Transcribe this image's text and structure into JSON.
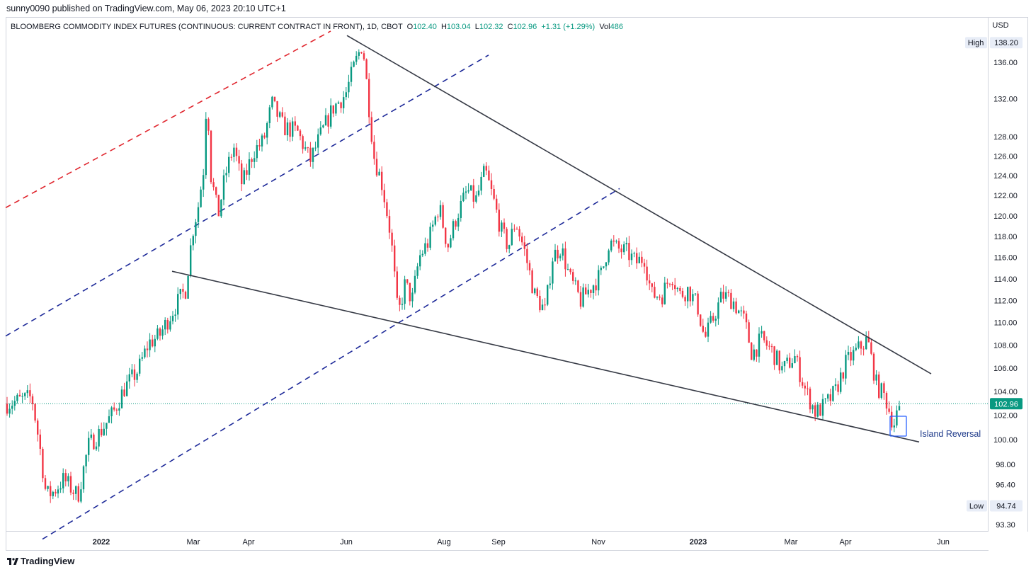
{
  "header": {
    "published": "sunny0090 published on TradingView.com, May 06, 2023 20:10 UTC+1"
  },
  "legend": {
    "symbol": "BLOOMBERG COMMODITY INDEX FUTURES (CONTINUOUS: CURRENT CONTRACT IN FRONT), 1D, CBOT",
    "o_label": "O",
    "o": "102.40",
    "h_label": "H",
    "h": "103.04",
    "l_label": "L",
    "l": "102.32",
    "c_label": "C",
    "c": "102.96",
    "change": "+1.31 (+1.29%)",
    "vol_label": "Vol",
    "vol": "486"
  },
  "footer": {
    "brand": "TradingView"
  },
  "colors": {
    "up": "#089981",
    "down": "#f23645",
    "trend": "#363a45",
    "blue_dash": "#1e2a99",
    "red_dash": "#e0262e",
    "label": "#2962ff"
  },
  "chart_data": {
    "type": "candlestick",
    "currency": "USD",
    "ylim": [
      92.2,
      139.5
    ],
    "y_ticks": [
      "136.00",
      "132.00",
      "128.00",
      "126.00",
      "124.00",
      "122.00",
      "120.00",
      "118.00",
      "116.00",
      "114.00",
      "112.00",
      "110.00",
      "108.00",
      "106.00",
      "104.00",
      "102.00",
      "100.00",
      "98.00",
      "96.40",
      "93.30"
    ],
    "x_labels": [
      "2022",
      "Mar",
      "Apr",
      "Jun",
      "Aug",
      "Sep",
      "Nov",
      "2023",
      "Mar",
      "Apr",
      "Jun"
    ],
    "high_label": "High",
    "high": "138.20",
    "low_label": "Low",
    "low": "94.74",
    "last_price": "102.96",
    "annotation": "Island Reversal",
    "price_path": [
      [
        0,
        102.8
      ],
      [
        45,
        103.5
      ],
      [
        56,
        99.5
      ],
      [
        65,
        95.6
      ],
      [
        75,
        95.8
      ],
      [
        90,
        96.8
      ],
      [
        110,
        95.5
      ],
      [
        125,
        99.5
      ],
      [
        140,
        100.5
      ],
      [
        160,
        102.2
      ],
      [
        175,
        104.2
      ],
      [
        195,
        105.8
      ],
      [
        210,
        108.2
      ],
      [
        225,
        108.8
      ],
      [
        245,
        111.2
      ],
      [
        262,
        113.0
      ],
      [
        272,
        118.5
      ],
      [
        280,
        121.0
      ],
      [
        288,
        125.0
      ],
      [
        292,
        133.0
      ],
      [
        298,
        124.0
      ],
      [
        308,
        120.0
      ],
      [
        318,
        124.0
      ],
      [
        330,
        127.0
      ],
      [
        342,
        123.0
      ],
      [
        358,
        126.5
      ],
      [
        372,
        127.5
      ],
      [
        384,
        131.5
      ],
      [
        400,
        129.0
      ],
      [
        420,
        128.5
      ],
      [
        438,
        125.5
      ],
      [
        452,
        128.0
      ],
      [
        470,
        131.0
      ],
      [
        488,
        132.5
      ],
      [
        500,
        135.5
      ],
      [
        512,
        138.2
      ],
      [
        520,
        132.0
      ],
      [
        528,
        126.0
      ],
      [
        540,
        123.0
      ],
      [
        552,
        118.0
      ],
      [
        562,
        110.5
      ],
      [
        572,
        113.5
      ],
      [
        582,
        112.0
      ],
      [
        592,
        116.0
      ],
      [
        605,
        117.5
      ],
      [
        620,
        121.0
      ],
      [
        632,
        117.0
      ],
      [
        645,
        120.0
      ],
      [
        660,
        122.5
      ],
      [
        672,
        121.5
      ],
      [
        685,
        124.5
      ],
      [
        697,
        121.5
      ],
      [
        708,
        118.5
      ],
      [
        718,
        117.0
      ],
      [
        728,
        119.5
      ],
      [
        740,
        116.8
      ],
      [
        755,
        112.5
      ],
      [
        770,
        111.0
      ],
      [
        780,
        116.0
      ],
      [
        792,
        117.0
      ],
      [
        805,
        114.0
      ],
      [
        820,
        112.0
      ],
      [
        838,
        113.5
      ],
      [
        850,
        114.5
      ],
      [
        860,
        117.5
      ],
      [
        872,
        116.8
      ],
      [
        885,
        116.5
      ],
      [
        898,
        115.5
      ],
      [
        910,
        116.0
      ],
      [
        920,
        112.5
      ],
      [
        935,
        112.5
      ],
      [
        948,
        114.5
      ],
      [
        960,
        112.5
      ],
      [
        972,
        113.0
      ],
      [
        985,
        111.5
      ],
      [
        995,
        108.5
      ],
      [
        1008,
        110.5
      ],
      [
        1020,
        112.5
      ],
      [
        1035,
        112.0
      ],
      [
        1052,
        110.0
      ],
      [
        1062,
        107.2
      ],
      [
        1075,
        108.5
      ],
      [
        1090,
        107.5
      ],
      [
        1105,
        105.8
      ],
      [
        1122,
        107.0
      ],
      [
        1138,
        104.0
      ],
      [
        1152,
        102.2
      ],
      [
        1165,
        102.8
      ],
      [
        1180,
        104.0
      ],
      [
        1195,
        106.5
      ],
      [
        1210,
        107.5
      ],
      [
        1225,
        108.5
      ],
      [
        1238,
        104.5
      ],
      [
        1250,
        103.5
      ],
      [
        1262,
        101.2
      ],
      [
        1271,
        102.96
      ]
    ],
    "trendlines": [
      {
        "name": "upper-wedge",
        "points": [
          [
            490,
            139.0
          ],
          [
            1315,
            105.5
          ]
        ]
      },
      {
        "name": "lower-wedge",
        "points": [
          [
            243,
            114.7
          ],
          [
            1298,
            99.8
          ]
        ]
      }
    ],
    "channel_lines": [
      {
        "name": "red-upper",
        "color": "red",
        "points": [
          [
            8,
            120.8
          ],
          [
            467,
            139.5
          ]
        ]
      },
      {
        "name": "blue-mid",
        "color": "blue",
        "points": [
          [
            8,
            108.8
          ],
          [
            690,
            136.8
          ]
        ]
      },
      {
        "name": "blue-lower",
        "color": "blue",
        "points": [
          [
            60,
            92.2
          ],
          [
            875,
            122.7
          ]
        ]
      }
    ]
  }
}
